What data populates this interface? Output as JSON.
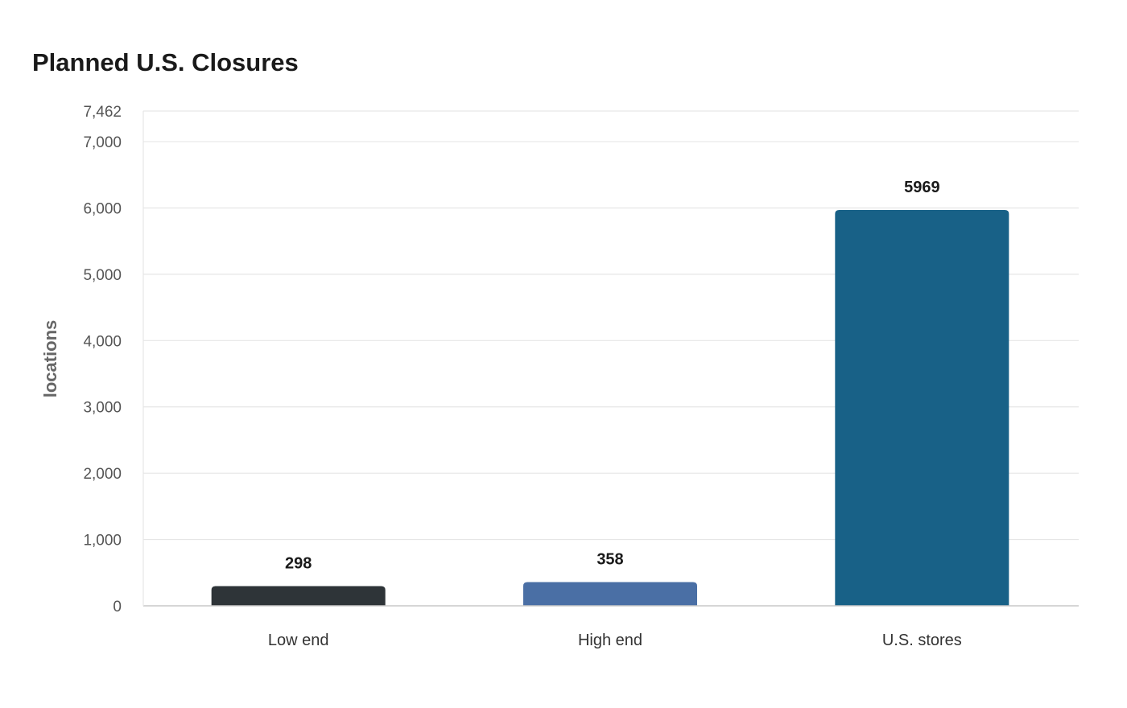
{
  "chart_data": {
    "type": "bar",
    "title": "Planned U.S. Closures",
    "xlabel": "",
    "ylabel": "locations",
    "categories": [
      "Low end",
      "High end",
      "U.S. stores"
    ],
    "values": [
      298,
      358,
      5969
    ],
    "data_labels": [
      "298",
      "358",
      "5969"
    ],
    "bar_colors": [
      "#2e3438",
      "#4a6fa5",
      "#186187"
    ],
    "ylim": [
      0,
      7462
    ],
    "yticks": [
      0,
      1000,
      2000,
      3000,
      4000,
      5000,
      6000,
      7000,
      7462
    ],
    "ytick_labels": [
      "0",
      "1,000",
      "2,000",
      "3,000",
      "4,000",
      "5,000",
      "6,000",
      "7,000",
      "7,462"
    ],
    "grid": true,
    "legend": "none"
  }
}
